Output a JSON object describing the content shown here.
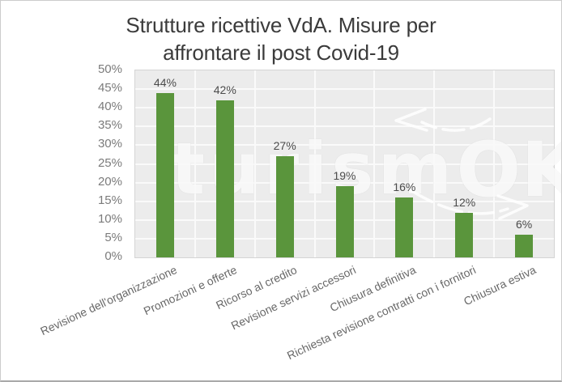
{
  "chart_data": {
    "type": "bar",
    "title": "Strutture ricettive VdA. Misure per affrontare il post Covid-19",
    "title_lines": [
      "Strutture ricettive VdA. Misure per",
      "affrontare il post Covid-19"
    ],
    "categories": [
      "Revisione dell'organizzazione",
      "Promozioni e offerte",
      "Ricorso al credito",
      "Revisione servizi accessori",
      "Chiusura definitiva",
      "Richiesta revisione contratti con i fornitori",
      "Chiusura estiva"
    ],
    "values": [
      44,
      42,
      27,
      19,
      16,
      12,
      6
    ],
    "data_labels": [
      "44%",
      "42%",
      "27%",
      "19%",
      "16%",
      "12%",
      "6%"
    ],
    "xlabel": "",
    "ylabel": "",
    "y_axis": {
      "min": 0,
      "max": 50,
      "step": 5,
      "tick_labels": [
        "0%",
        "5%",
        "10%",
        "15%",
        "20%",
        "25%",
        "30%",
        "35%",
        "40%",
        "45%",
        "50%"
      ]
    },
    "grid": true,
    "legend": false,
    "colors": {
      "bar": "#5a953c",
      "plot_background": "#ececec",
      "gridline": "#fafafa",
      "title_text": "#3b3b3b",
      "y_tick_text": "#7b7b7b",
      "x_tick_text": "#686868",
      "data_label_text": "#4b4b4b"
    }
  },
  "watermark": {
    "text_small": "turism",
    "text_large": "OK",
    "icons": [
      "curved-arrow-left-icon",
      "curved-arrow-right-icon"
    ]
  }
}
